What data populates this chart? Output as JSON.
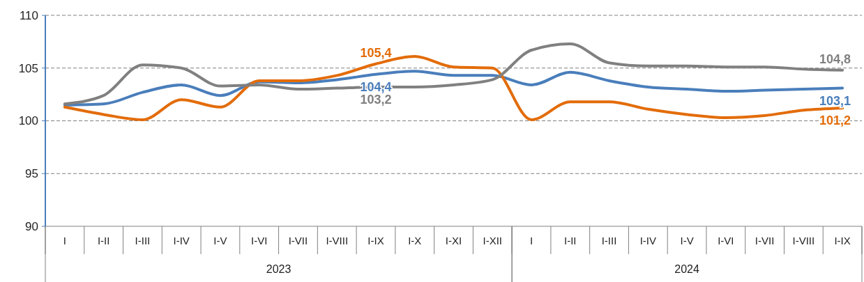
{
  "chart_data": {
    "type": "line",
    "categories": [
      "I",
      "I-II",
      "I-III",
      "I-IV",
      "I-V",
      "I-VI",
      "I-VII",
      "I-VIII",
      "I-IX",
      "I-X",
      "I-XI",
      "I-XII",
      "I",
      "I-II",
      "I-III",
      "I-IV",
      "I-V",
      "I-VI",
      "I-VII",
      "I-VIII",
      "I-IX"
    ],
    "annotations": [
      "2023",
      "2024"
    ],
    "ylim": [
      90,
      110
    ],
    "yticks": [
      90,
      95,
      100,
      105,
      110
    ],
    "grid": "y",
    "marker": "none",
    "line_style": "solid",
    "series": [
      {
        "color": "#4a7ebb",
        "values": [
          101.5,
          101.6,
          102.7,
          103.4,
          102.4,
          103.7,
          103.6,
          103.9,
          104.4,
          104.7,
          104.3,
          104.3,
          103.4,
          104.6,
          103.8,
          103.2,
          103.0,
          102.8,
          102.9,
          103.0,
          103.1
        ],
        "value_labels": [
          null,
          null,
          null,
          null,
          null,
          null,
          null,
          null,
          "104,4",
          null,
          null,
          null,
          null,
          null,
          null,
          null,
          null,
          null,
          null,
          null,
          "103,1"
        ]
      },
      {
        "color": "#e36c0a",
        "values": [
          101.3,
          100.6,
          100.1,
          102.0,
          101.3,
          103.8,
          103.8,
          104.3,
          105.4,
          106.1,
          105.1,
          105.0,
          100.1,
          101.8,
          101.8,
          101.1,
          100.6,
          100.3,
          100.5,
          101.0,
          101.2
        ],
        "value_labels": [
          null,
          null,
          null,
          null,
          null,
          null,
          null,
          null,
          "105,4",
          null,
          null,
          null,
          null,
          null,
          null,
          null,
          null,
          null,
          null,
          null,
          "101,2"
        ]
      },
      {
        "color": "#808080",
        "values": [
          101.6,
          102.4,
          105.3,
          105.0,
          103.3,
          103.4,
          103.0,
          103.1,
          103.2,
          103.2,
          103.4,
          103.9,
          106.7,
          107.3,
          105.5,
          105.2,
          105.2,
          105.1,
          105.1,
          104.9,
          104.8
        ],
        "value_labels": [
          null,
          null,
          null,
          null,
          null,
          null,
          null,
          null,
          "103,2",
          null,
          null,
          null,
          null,
          null,
          null,
          null,
          null,
          null,
          null,
          null,
          "104,8"
        ]
      }
    ]
  }
}
